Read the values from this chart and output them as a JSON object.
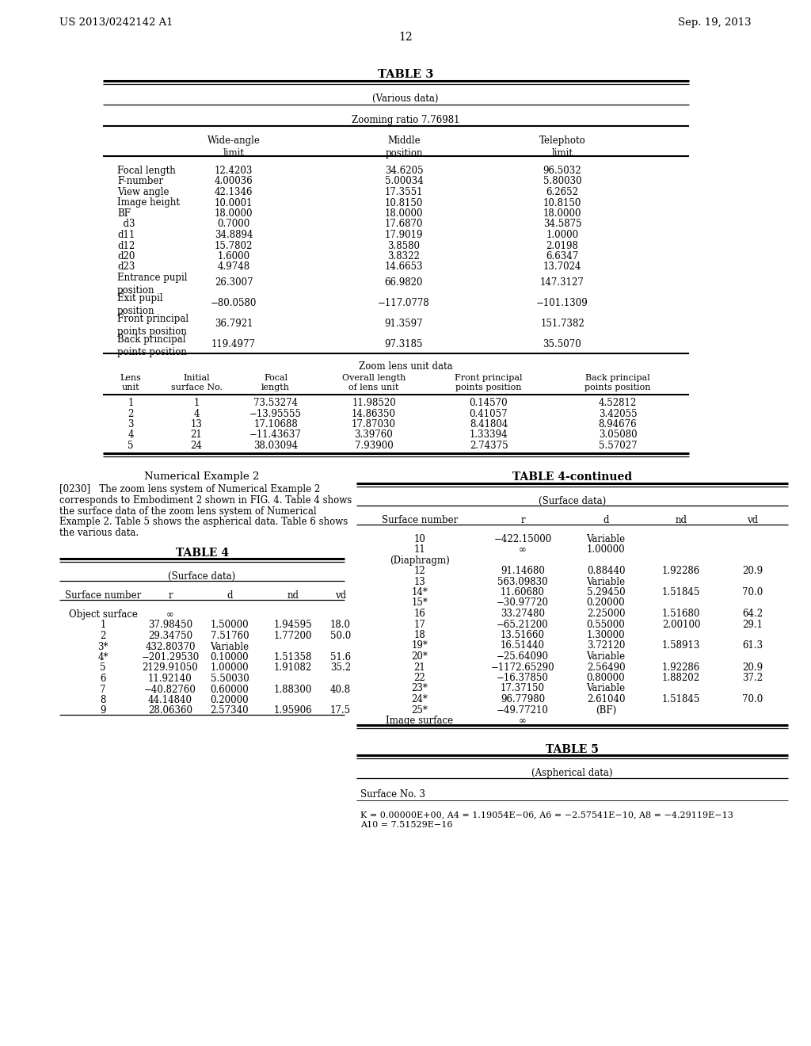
{
  "header_left": "US 2013/0242142 A1",
  "header_right": "Sep. 19, 2013",
  "page_number": "12",
  "bg_color": "#ffffff",
  "table3_title": "TABLE 3",
  "table3_subtitle": "(Various data)",
  "table3_zoom": "Zooming ratio 7.76981",
  "table3_rows": [
    [
      "Focal length",
      "12.4203",
      "34.6205",
      "96.5032"
    ],
    [
      "F-number",
      "4.00036",
      "5.00034",
      "5.80030"
    ],
    [
      "View angle",
      "42.1346",
      "17.3551",
      "6.2652"
    ],
    [
      "Image height",
      "10.0001",
      "10.8150",
      "10.8150"
    ],
    [
      "BF",
      "18.0000",
      "18.0000",
      "18.0000"
    ],
    [
      "  d3",
      "0.7000",
      "17.6870",
      "34.5875"
    ],
    [
      "d11",
      "34.8894",
      "17.9019",
      "1.0000"
    ],
    [
      "d12",
      "15.7802",
      "3.8580",
      "2.0198"
    ],
    [
      "d20",
      "1.6000",
      "3.8322",
      "6.6347"
    ],
    [
      "d23",
      "4.9748",
      "14.6653",
      "13.7024"
    ],
    [
      "Entrance pupil\nposition",
      "26.3007",
      "66.9820",
      "147.3127"
    ],
    [
      "Exit pupil\nposition",
      "−80.0580",
      "−117.0778",
      "−101.1309"
    ],
    [
      "Front principal\npoints position",
      "36.7921",
      "91.3597",
      "151.7382"
    ],
    [
      "Back principal\npoints position",
      "119.4977",
      "97.3185",
      "35.5070"
    ]
  ],
  "table3_row_twolines": [
    false,
    false,
    false,
    false,
    false,
    false,
    false,
    false,
    false,
    false,
    true,
    true,
    true,
    true
  ],
  "table3_zoom_unit_title": "Zoom lens unit data",
  "table3_zoom_unit_col_headers": [
    "Lens\nunit",
    "Initial\nsurface No.",
    "Focal\nlength",
    "Overall length\nof lens unit",
    "Front principal\npoints position",
    "Back principal\npoints position"
  ],
  "table3_zoom_unit_rows": [
    [
      "1",
      "1",
      "73.53274",
      "11.98520",
      "0.14570",
      "4.52812"
    ],
    [
      "2",
      "4",
      "−13.95555",
      "14.86350",
      "0.41057",
      "3.42055"
    ],
    [
      "3",
      "13",
      "17.10688",
      "17.87030",
      "8.41804",
      "8.94676"
    ],
    [
      "4",
      "21",
      "−11.43637",
      "3.39760",
      "1.33394",
      "3.05080"
    ],
    [
      "5",
      "24",
      "38.03094",
      "7.93900",
      "2.74375",
      "5.57027"
    ]
  ],
  "num_example2_title": "Numerical Example 2",
  "num_example2_text_lines": [
    "[0230]   The zoom lens system of Numerical Example 2",
    "corresponds to Embodiment 2 shown in FIG. 4. Table 4 shows",
    "the surface data of the zoom lens system of Numerical",
    "Example 2. Table 5 shows the aspherical data. Table 6 shows",
    "the various data."
  ],
  "table4_title": "TABLE 4",
  "table4_subtitle": "(Surface data)",
  "table4_col_headers": [
    "Surface number",
    "r",
    "d",
    "nd",
    "vd"
  ],
  "table4_left_rows": [
    [
      "Object surface",
      "∞",
      "",
      "",
      ""
    ],
    [
      "1",
      "37.98450",
      "1.50000",
      "1.94595",
      "18.0"
    ],
    [
      "2",
      "29.34750",
      "7.51760",
      "1.77200",
      "50.0"
    ],
    [
      "3*",
      "432.80370",
      "Variable",
      "",
      ""
    ],
    [
      "4*",
      "−201.29530",
      "0.10000",
      "1.51358",
      "51.6"
    ],
    [
      "5",
      "2129.91050",
      "1.00000",
      "1.91082",
      "35.2"
    ],
    [
      "6",
      "11.92140",
      "5.50030",
      "",
      ""
    ],
    [
      "7",
      "−40.82760",
      "0.60000",
      "1.88300",
      "40.8"
    ],
    [
      "8",
      "44.14840",
      "0.20000",
      "",
      ""
    ],
    [
      "9",
      "28.06360",
      "2.57340",
      "1.95906",
      "17.5"
    ]
  ],
  "table4_continued_title": "TABLE 4-continued",
  "table4_continued_subtitle": "(Surface data)",
  "table4_continued_col_headers": [
    "Surface number",
    "r",
    "d",
    "nd",
    "vd"
  ],
  "table4_right_rows": [
    [
      "10",
      "−422.15000",
      "Variable",
      "",
      ""
    ],
    [
      "11",
      "∞",
      "1.00000",
      "",
      ""
    ],
    [
      "(Diaphragm)",
      "",
      "",
      "",
      ""
    ],
    [
      "12",
      "91.14680",
      "0.88440",
      "1.92286",
      "20.9"
    ],
    [
      "13",
      "563.09830",
      "Variable",
      "",
      ""
    ],
    [
      "14*",
      "11.60680",
      "5.29450",
      "1.51845",
      "70.0"
    ],
    [
      "15*",
      "−30.97720",
      "0.20000",
      "",
      ""
    ],
    [
      "16",
      "33.27480",
      "2.25000",
      "1.51680",
      "64.2"
    ],
    [
      "17",
      "−65.21200",
      "0.55000",
      "2.00100",
      "29.1"
    ],
    [
      "18",
      "13.51660",
      "1.30000",
      "",
      ""
    ],
    [
      "19*",
      "16.51440",
      "3.72120",
      "1.58913",
      "61.3"
    ],
    [
      "20*",
      "−25.64090",
      "Variable",
      "",
      ""
    ],
    [
      "21",
      "−1172.65290",
      "2.56490",
      "1.92286",
      "20.9"
    ],
    [
      "22",
      "−16.37850",
      "0.80000",
      "1.88202",
      "37.2"
    ],
    [
      "23*",
      "17.37150",
      "Variable",
      "",
      ""
    ],
    [
      "24*",
      "96.77980",
      "2.61040",
      "1.51845",
      "70.0"
    ],
    [
      "25*",
      "−49.77210",
      "(BF)",
      "",
      ""
    ],
    [
      "Image surface",
      "∞",
      "",
      "",
      ""
    ]
  ],
  "table5_title": "TABLE 5",
  "table5_subtitle": "(Aspherical data)",
  "table5_surface": "Surface No. 3",
  "table5_formula": "K = 0.00000E+00, A4 = 1.19054E−06, A6 = −2.57541E−10, A8 = −4.29119E−13",
  "table5_formula2": "A10 = 7.51529E−16"
}
